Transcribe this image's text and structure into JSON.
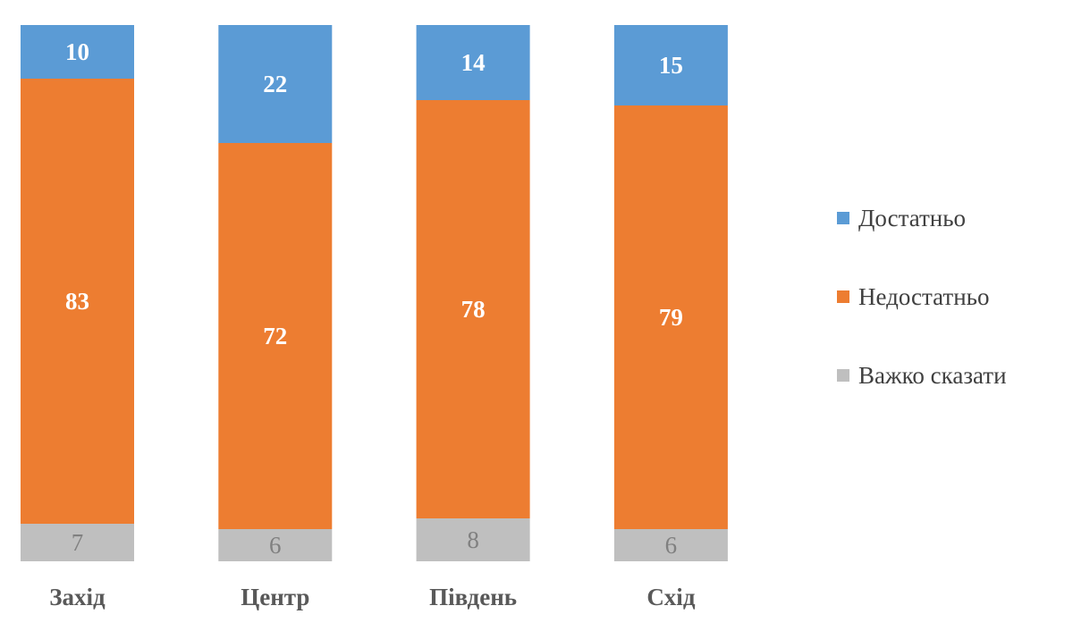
{
  "chart_data": {
    "type": "bar",
    "stacked": true,
    "title": "",
    "xlabel": "",
    "ylabel": "",
    "ylim": [
      0,
      100
    ],
    "grid": false,
    "legend_position": "right",
    "categories": [
      "Захід",
      "Центр",
      "Південь",
      "Схід"
    ],
    "series": [
      {
        "name": "Достатньо",
        "values": [
          10,
          22,
          14,
          15
        ],
        "color": "#5B9BD5",
        "label_color": "#FFFFFF"
      },
      {
        "name": "Недостатньо",
        "values": [
          83,
          72,
          78,
          79
        ],
        "color": "#ED7D31",
        "label_color": "#FFFFFF"
      },
      {
        "name": "Важко сказати",
        "values": [
          7,
          6,
          8,
          6
        ],
        "color": "#BFBFBF",
        "label_color": "#808080"
      }
    ]
  }
}
